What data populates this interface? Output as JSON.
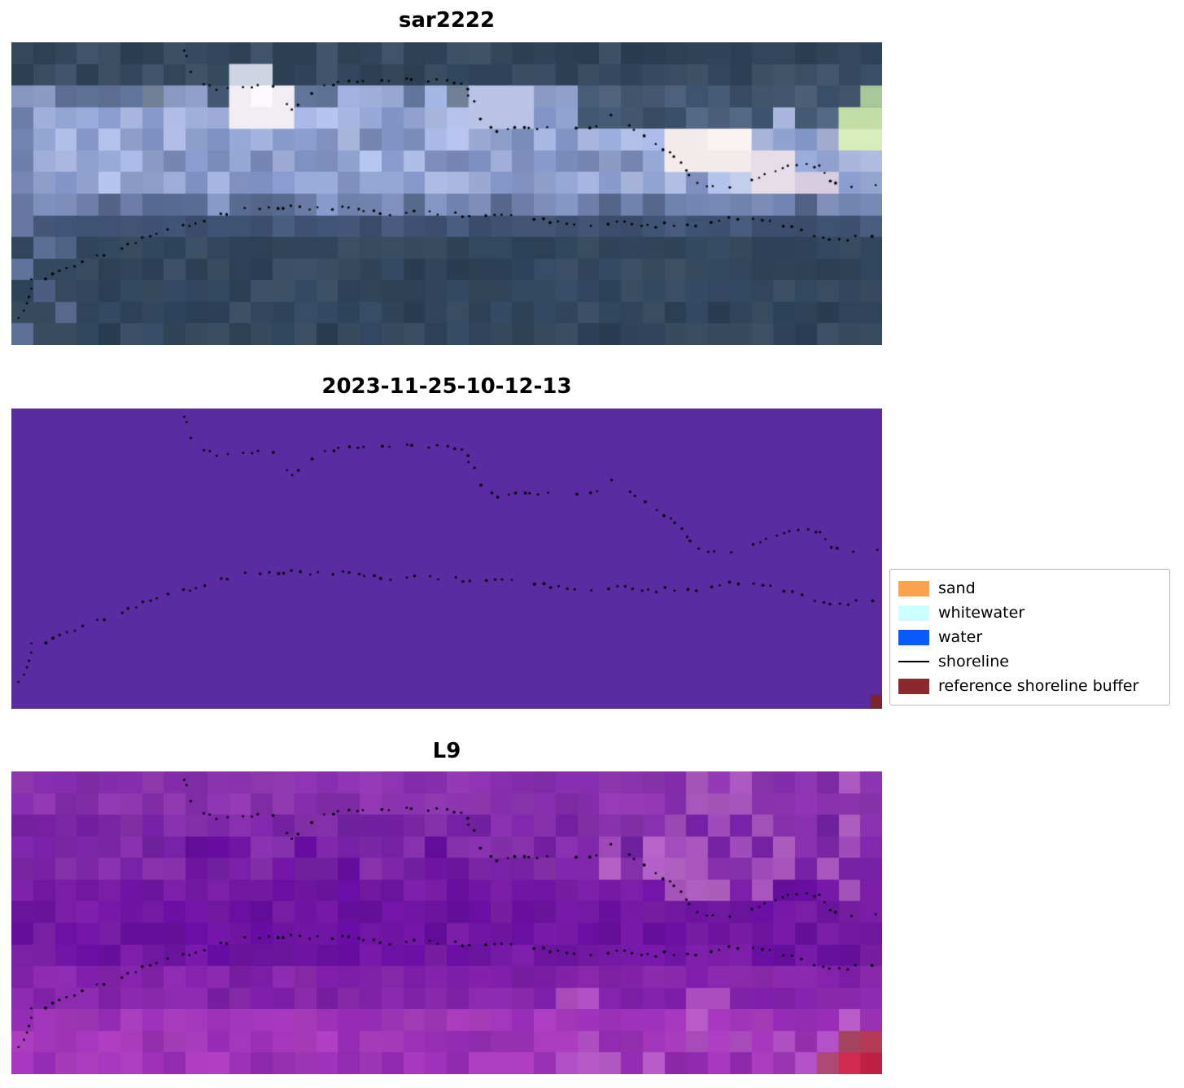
{
  "chart_data": {
    "type": "heatmap",
    "description": "Three stacked satellite image panels with detected shoreline points and a classification legend",
    "panels": [
      {
        "title": "sar2222",
        "render": {
          "seed": 11,
          "cols": 40,
          "rows": 14,
          "jitter": 0.12,
          "bands": [
            {
              "rows": [
                0,
                1
              ],
              "colors": [
                "#2c3f55",
                "#364a61",
                "#2f4358",
                "#3d5066"
              ]
            },
            {
              "rows": [
                2,
                2
              ],
              "colors": [
                "#5d7094",
                "#75879f",
                "#42566e",
                "#8b9cc6"
              ]
            },
            {
              "rows": [
                3,
                6
              ],
              "colors": [
                "#92a4d2",
                "#a3b2de",
                "#8496c8",
                "#aebce4",
                "#7b8dbd"
              ]
            },
            {
              "rows": [
                7,
                7
              ],
              "colors": [
                "#6f81ad",
                "#55688c",
                "#8193c1"
              ]
            },
            {
              "rows": [
                8,
                8
              ],
              "colors": [
                "#46597a",
                "#3d5070"
              ]
            },
            {
              "rows": [
                9,
                13
              ],
              "colors": [
                "#30455b",
                "#394d62",
                "#2b4056",
                "#334961"
              ]
            }
          ],
          "overlays": [
            {
              "cols": [
                26,
                39
              ],
              "rows": [
                2,
                3
              ],
              "colors": [
                "#435871",
                "#50647e",
                "#3a4f68"
              ],
              "p": 0.8
            },
            {
              "cols": [
                27,
                39
              ],
              "rows": [
                4,
                6
              ],
              "colors": [
                "#8ea0c8",
                "#a9b4d8",
                "#bac4e2"
              ],
              "p": 0.5
            },
            {
              "cols": [
                0,
                0
              ],
              "rows": [
                3,
                8
              ],
              "colors": [
                "#6a7ca8"
              ],
              "p": 0.6
            },
            {
              "cols": [
                0,
                2
              ],
              "rows": [
                9,
                13
              ],
              "colors": [
                "#4c5f82",
                "#5b6e94"
              ],
              "p": 0.55
            },
            {
              "cols": [
                14,
                19
              ],
              "rows": [
                2,
                2
              ],
              "colors": [
                "#9fb0dd"
              ],
              "p": 0.5
            }
          ],
          "blobs": [
            {
              "c": 10,
              "r": 1,
              "w": 2,
              "h": 1,
              "color": "#cfd3e2"
            },
            {
              "c": 10,
              "r": 2,
              "w": 3,
              "h": 2,
              "color": "#f1edf3"
            },
            {
              "c": 11,
              "r": 2,
              "w": 1,
              "h": 1,
              "color": "#fbf9fc"
            },
            {
              "c": 21,
              "r": 2,
              "w": 3,
              "h": 2,
              "color": "#b9c3e6"
            },
            {
              "c": 30,
              "r": 4,
              "w": 4,
              "h": 2,
              "color": "#f3eaec"
            },
            {
              "c": 32,
              "r": 4,
              "w": 2,
              "h": 1,
              "color": "#f9f3f1"
            },
            {
              "c": 34,
              "r": 5,
              "w": 2,
              "h": 2,
              "color": "#e6dde8"
            },
            {
              "c": 36,
              "r": 6,
              "w": 2,
              "h": 1,
              "color": "#d6cde0"
            },
            {
              "c": 38,
              "r": 3,
              "w": 2,
              "h": 1,
              "color": "#c3dda6"
            },
            {
              "c": 38,
              "r": 4,
              "w": 2,
              "h": 1,
              "color": "#d9ecbc"
            },
            {
              "c": 39,
              "r": 2,
              "w": 1,
              "h": 1,
              "color": "#a8c89a"
            }
          ]
        }
      },
      {
        "title": "2023-11-25-10-12-13",
        "render": {
          "seed": 5,
          "cols": 40,
          "rows": 14,
          "jitter": 0,
          "bands": [
            {
              "rows": [
                0,
                13
              ],
              "colors": [
                "#5a2ba1"
              ]
            }
          ],
          "overlays": [],
          "blobs": [
            {
              "c": 39.45,
              "r": 13.35,
              "w": 0.55,
              "h": 0.65,
              "color": "#7c2531"
            }
          ]
        }
      },
      {
        "title": "L9",
        "render": {
          "seed": 23,
          "cols": 40,
          "rows": 14,
          "jitter": 0.09,
          "bands": [
            {
              "rows": [
                0,
                1
              ],
              "colors": [
                "#8a33ae",
                "#9139b2",
                "#822ca9"
              ]
            },
            {
              "rows": [
                2,
                4
              ],
              "colors": [
                "#7c27a7",
                "#8530ab",
                "#7421a3"
              ]
            },
            {
              "rows": [
                5,
                8
              ],
              "colors": [
                "#6d14a1",
                "#7419a5",
                "#680fa0",
                "#7a1ea6"
              ]
            },
            {
              "rows": [
                9,
                10
              ],
              "colors": [
                "#8122a9",
                "#8a2aad",
                "#7b1ea6"
              ]
            },
            {
              "rows": [
                11,
                13
              ],
              "colors": [
                "#9a30b4",
                "#a236b9",
                "#932bb1",
                "#a93cbc"
              ]
            }
          ],
          "overlays": [
            {
              "cols": [
                27,
                39
              ],
              "rows": [
                2,
                5
              ],
              "colors": [
                "#a855bd",
                "#b160c3",
                "#9c49b7"
              ],
              "p": 0.4
            },
            {
              "cols": [
                31,
                39
              ],
              "rows": [
                0,
                1
              ],
              "colors": [
                "#9f4cb8",
                "#a957bd"
              ],
              "p": 0.35
            },
            {
              "cols": [
                25,
                39
              ],
              "rows": [
                10,
                13
              ],
              "colors": [
                "#ad4ec1",
                "#b65ac7"
              ],
              "p": 0.3
            },
            {
              "cols": [
                0,
                1
              ],
              "rows": [
                2,
                9
              ],
              "colors": [
                "#7a21a6"
              ],
              "p": 0.5
            },
            {
              "cols": [
                8,
                20
              ],
              "rows": [
                3,
                8
              ],
              "colors": [
                "#660da0",
                "#6f15a2"
              ],
              "p": 0.35
            }
          ],
          "blobs": [
            {
              "c": 38,
              "r": 12,
              "w": 2,
              "h": 1,
              "color": "#a44460"
            },
            {
              "c": 37,
              "r": 13,
              "w": 1,
              "h": 1,
              "color": "#ad4a72"
            },
            {
              "c": 38,
              "r": 13,
              "w": 1,
              "h": 1,
              "color": "#d12a50"
            },
            {
              "c": 39,
              "r": 13,
              "w": 1,
              "h": 1,
              "color": "#c01f44"
            },
            {
              "c": 39,
              "r": 12,
              "w": 1,
              "h": 1,
              "color": "#b53a58"
            }
          ]
        }
      }
    ],
    "legend": {
      "items": [
        {
          "label": "sand",
          "swatch": "patch",
          "color": "#F9A24B"
        },
        {
          "label": "whitewater",
          "swatch": "patch",
          "color": "#CCFFFF"
        },
        {
          "label": "water",
          "swatch": "patch",
          "color": "#0A5BFB"
        },
        {
          "label": "shoreline",
          "swatch": "line",
          "color": "#000000"
        },
        {
          "label": "reference shoreline buffer",
          "swatch": "patch",
          "color": "#8B2A2E"
        }
      ]
    },
    "shorelines": {
      "dot_color": "#000000",
      "upper": [
        [
          0.197,
          0.025
        ],
        [
          0.2,
          0.06
        ],
        [
          0.205,
          0.095
        ],
        [
          0.215,
          0.13
        ],
        [
          0.228,
          0.148
        ],
        [
          0.245,
          0.156
        ],
        [
          0.265,
          0.15
        ],
        [
          0.285,
          0.143
        ],
        [
          0.3,
          0.138
        ],
        [
          0.312,
          0.178
        ],
        [
          0.318,
          0.225
        ],
        [
          0.33,
          0.212
        ],
        [
          0.342,
          0.175
        ],
        [
          0.355,
          0.148
        ],
        [
          0.375,
          0.132
        ],
        [
          0.4,
          0.125
        ],
        [
          0.425,
          0.128
        ],
        [
          0.45,
          0.12
        ],
        [
          0.475,
          0.124
        ],
        [
          0.5,
          0.128
        ],
        [
          0.52,
          0.134
        ],
        [
          0.528,
          0.19
        ],
        [
          0.535,
          0.245
        ],
        [
          0.548,
          0.285
        ],
        [
          0.562,
          0.29
        ],
        [
          0.578,
          0.285
        ],
        [
          0.595,
          0.29
        ],
        [
          0.61,
          0.282
        ],
        [
          0.625,
          0.285
        ],
        [
          0.64,
          0.262
        ],
        [
          0.65,
          0.285
        ],
        [
          0.665,
          0.29
        ],
        [
          0.678,
          0.262
        ],
        [
          0.688,
          0.232
        ],
        [
          0.7,
          0.252
        ],
        [
          0.712,
          0.285
        ],
        [
          0.725,
          0.305
        ],
        [
          0.74,
          0.335
        ],
        [
          0.752,
          0.358
        ],
        [
          0.763,
          0.385
        ],
        [
          0.772,
          0.41
        ],
        [
          0.778,
          0.44
        ],
        [
          0.788,
          0.462
        ],
        [
          0.8,
          0.473
        ],
        [
          0.812,
          0.48
        ],
        [
          0.825,
          0.483
        ],
        [
          0.838,
          0.474
        ],
        [
          0.85,
          0.458
        ],
        [
          0.862,
          0.44
        ],
        [
          0.872,
          0.425
        ],
        [
          0.88,
          0.412
        ],
        [
          0.89,
          0.408
        ],
        [
          0.9,
          0.414
        ],
        [
          0.91,
          0.406
        ],
        [
          0.92,
          0.412
        ],
        [
          0.928,
          0.408
        ],
        [
          0.934,
          0.44
        ],
        [
          0.94,
          0.465
        ],
        [
          0.952,
          0.468
        ],
        [
          0.965,
          0.472
        ],
        [
          0.978,
          0.467
        ],
        [
          0.99,
          0.471
        ],
        [
          1.0,
          0.468
        ]
      ],
      "lower": [
        [
          0.006,
          0.93
        ],
        [
          0.012,
          0.895
        ],
        [
          0.02,
          0.862
        ],
        [
          0.024,
          0.815
        ],
        [
          0.021,
          0.782
        ],
        [
          0.028,
          0.79
        ],
        [
          0.04,
          0.775
        ],
        [
          0.055,
          0.758
        ],
        [
          0.075,
          0.735
        ],
        [
          0.1,
          0.708
        ],
        [
          0.13,
          0.672
        ],
        [
          0.16,
          0.64
        ],
        [
          0.19,
          0.612
        ],
        [
          0.22,
          0.588
        ],
        [
          0.245,
          0.566
        ],
        [
          0.262,
          0.555
        ],
        [
          0.28,
          0.547
        ],
        [
          0.298,
          0.54
        ],
        [
          0.308,
          0.554
        ],
        [
          0.322,
          0.545
        ],
        [
          0.345,
          0.55
        ],
        [
          0.372,
          0.547
        ],
        [
          0.4,
          0.553
        ],
        [
          0.43,
          0.565
        ],
        [
          0.462,
          0.562
        ],
        [
          0.5,
          0.568
        ],
        [
          0.532,
          0.572
        ],
        [
          0.562,
          0.57
        ],
        [
          0.592,
          0.578
        ],
        [
          0.615,
          0.59
        ],
        [
          0.638,
          0.602
        ],
        [
          0.655,
          0.612
        ],
        [
          0.675,
          0.602
        ],
        [
          0.695,
          0.596
        ],
        [
          0.715,
          0.602
        ],
        [
          0.735,
          0.607
        ],
        [
          0.755,
          0.6
        ],
        [
          0.775,
          0.604
        ],
        [
          0.795,
          0.6
        ],
        [
          0.815,
          0.586
        ],
        [
          0.835,
          0.58
        ],
        [
          0.855,
          0.578
        ],
        [
          0.872,
          0.59
        ],
        [
          0.888,
          0.602
        ],
        [
          0.905,
          0.62
        ],
        [
          0.92,
          0.64
        ],
        [
          0.935,
          0.653
        ],
        [
          0.95,
          0.655
        ],
        [
          0.965,
          0.645
        ],
        [
          0.98,
          0.638
        ],
        [
          1.0,
          0.633
        ]
      ]
    }
  }
}
